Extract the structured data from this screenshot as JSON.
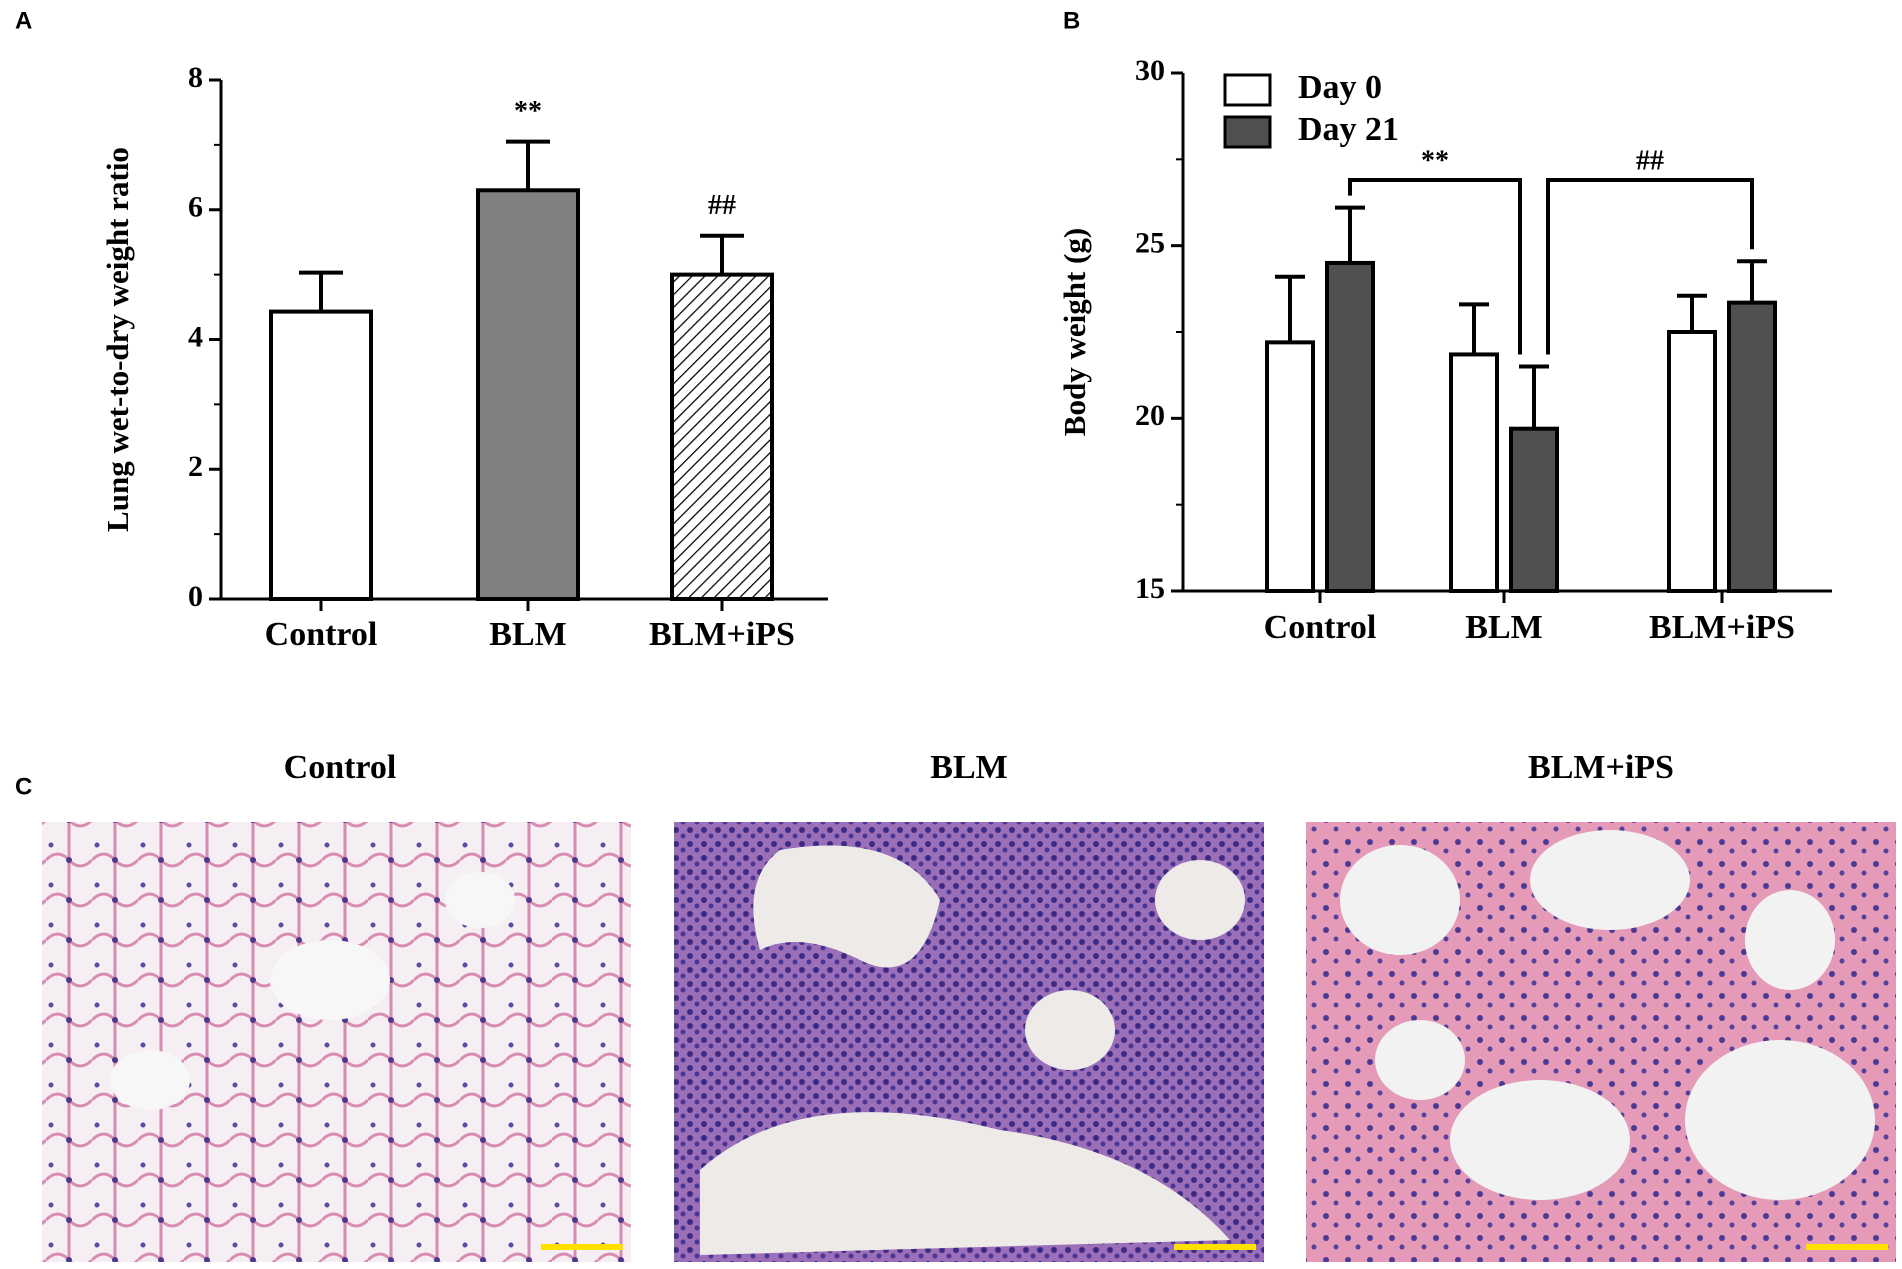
{
  "chart_data": [
    {
      "label": "A",
      "type": "bar",
      "ylabel": "Lung wet-to-dry weight ratio",
      "categories": [
        "Control",
        "BLM",
        "BLM+iPS"
      ],
      "values": [
        4.43,
        6.3,
        5.0
      ],
      "errors": [
        0.6,
        0.75,
        0.6
      ],
      "colors": [
        "#ffffff",
        "#808080",
        "#ffffff"
      ],
      "hatch": [
        false,
        false,
        true
      ],
      "ylim": [
        0,
        8
      ],
      "yticks": [
        0,
        2,
        4,
        6,
        8
      ],
      "annotations": [
        {
          "text": "**",
          "category": "BLM"
        },
        {
          "text": "##",
          "category": "BLM+iPS"
        }
      ]
    },
    {
      "label": "B",
      "type": "grouped-bar",
      "ylabel": "Body weight (g)",
      "categories": [
        "Control",
        "BLM",
        "BLM+iPS"
      ],
      "series": [
        {
          "name": "Day 0",
          "color": "#ffffff",
          "values": [
            22.2,
            21.85,
            22.5
          ],
          "errors": [
            1.9,
            1.45,
            1.05
          ]
        },
        {
          "name": "Day 21",
          "color": "#505050",
          "values": [
            24.5,
            19.7,
            23.35
          ],
          "errors": [
            1.6,
            1.8,
            1.2
          ]
        }
      ],
      "ylim": [
        15,
        30
      ],
      "yticks": [
        15,
        20,
        25,
        30
      ],
      "legend": "top-left",
      "brackets": [
        {
          "text": "**",
          "from": "Control",
          "to": "BLM"
        },
        {
          "text": "##",
          "from": "BLM",
          "to": "BLM+iPS"
        }
      ]
    }
  ],
  "histology": {
    "label": "C",
    "titles": [
      "Control",
      "BLM",
      "BLM+iPS"
    ]
  }
}
